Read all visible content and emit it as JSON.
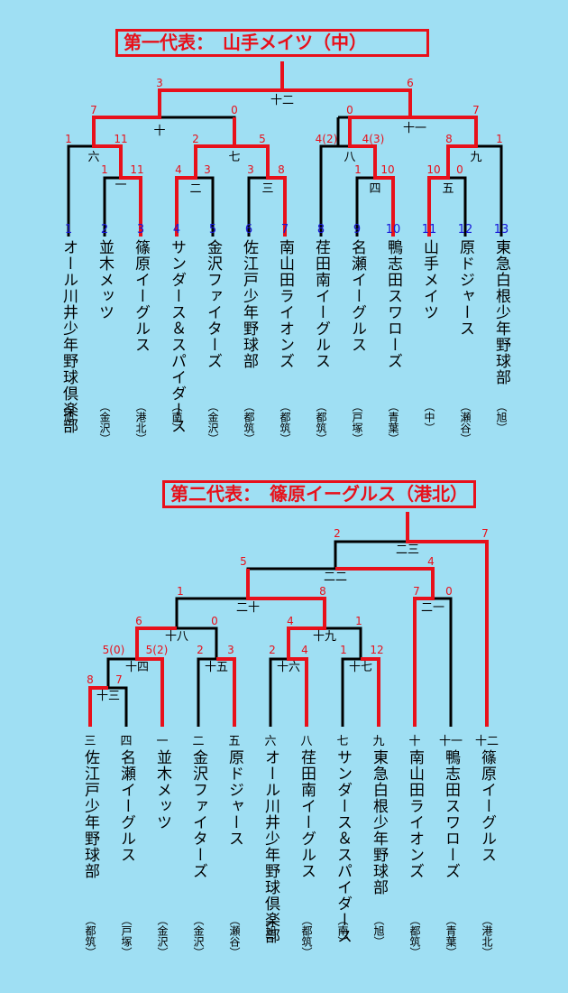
{
  "section1": {
    "title": "第一代表：　山手メイツ（中）",
    "teams": [
      {
        "seed": "1",
        "name": "オール川井少年野球倶楽部",
        "area": "（旭）"
      },
      {
        "seed": "2",
        "name": "並木メッツ",
        "area": "（金沢）"
      },
      {
        "seed": "3",
        "name": "篠原イーグルス",
        "area": "（港北）"
      },
      {
        "seed": "4",
        "name": "サンダース＆スパイダース",
        "area": "（南）"
      },
      {
        "seed": "5",
        "name": "金沢ファイターズ",
        "area": "（金沢）"
      },
      {
        "seed": "6",
        "name": "佐江戸少年野球部",
        "area": "（都筑）"
      },
      {
        "seed": "7",
        "name": "南山田ライオンズ",
        "area": "（都筑）"
      },
      {
        "seed": "8",
        "name": "荏田南イーグルス",
        "area": "（都筑）"
      },
      {
        "seed": "9",
        "name": "名瀬イーグルス",
        "area": "（戸塚）"
      },
      {
        "seed": "10",
        "name": "鴨志田スワローズ",
        "area": "（青葉）"
      },
      {
        "seed": "11",
        "name": "山手メイツ",
        "area": "（中）"
      },
      {
        "seed": "12",
        "name": "原ドジャース",
        "area": "（瀬谷）"
      },
      {
        "seed": "13",
        "name": "東急白根少年野球部",
        "area": "（旭）"
      }
    ],
    "game_labels": [
      "一",
      "二",
      "三",
      "四",
      "五",
      "六",
      "七",
      "八",
      "九",
      "十",
      "十一",
      "十二"
    ],
    "scores": [
      "1",
      "11",
      "1",
      "11",
      "2",
      "5",
      "4",
      "3",
      "3",
      "8",
      "4(2)",
      "4(3)",
      "1",
      "10",
      "8",
      "1",
      "10",
      "0",
      "7",
      "0",
      "0",
      "7",
      "3",
      "6"
    ]
  },
  "section2": {
    "title": "第二代表：　篠原イーグルス（港北）",
    "teams": [
      {
        "slot": "三",
        "name": "佐江戸少年野球部",
        "area": "（都筑）"
      },
      {
        "slot": "四",
        "name": "名瀬イーグルス",
        "area": "（戸塚）"
      },
      {
        "slot": "一",
        "name": "並木メッツ",
        "area": "（金沢）"
      },
      {
        "slot": "二",
        "name": "金沢ファイターズ",
        "area": "（金沢）"
      },
      {
        "slot": "五",
        "name": "原ドジャース",
        "area": "（瀬谷）"
      },
      {
        "slot": "六",
        "name": "オール川井少年野球倶楽部",
        "area": "（旭）"
      },
      {
        "slot": "八",
        "name": "荏田南イーグルス",
        "area": "（都筑）"
      },
      {
        "slot": "七",
        "name": "サンダース＆スパイダース",
        "area": "（南）"
      },
      {
        "slot": "九",
        "name": "東急白根少年野球部",
        "area": "（旭）"
      },
      {
        "slot": "十",
        "name": "南山田ライオンズ",
        "area": "（都筑）"
      },
      {
        "slot": "十一",
        "name": "鴨志田スワローズ",
        "area": "（青葉）"
      },
      {
        "slot": "十二",
        "name": "篠原イーグルス",
        "area": "（港北）"
      }
    ],
    "game_labels": [
      "十三",
      "十四",
      "十五",
      "十六",
      "十七",
      "十八",
      "十九",
      "二十",
      "二一",
      "二二",
      "二三"
    ],
    "scores": [
      "8",
      "7",
      "5(0)",
      "5(2)",
      "2",
      "3",
      "2",
      "4",
      "1",
      "12",
      "6",
      "0",
      "4",
      "1",
      "1",
      "8",
      "7",
      "0",
      "5",
      "4",
      "2",
      "7"
    ]
  },
  "colors": {
    "background": "#9fdff3",
    "winner_line": "#e8101a",
    "loser_line": "#000000",
    "seed_number": "#1515d8",
    "score": "#e8101a"
  }
}
